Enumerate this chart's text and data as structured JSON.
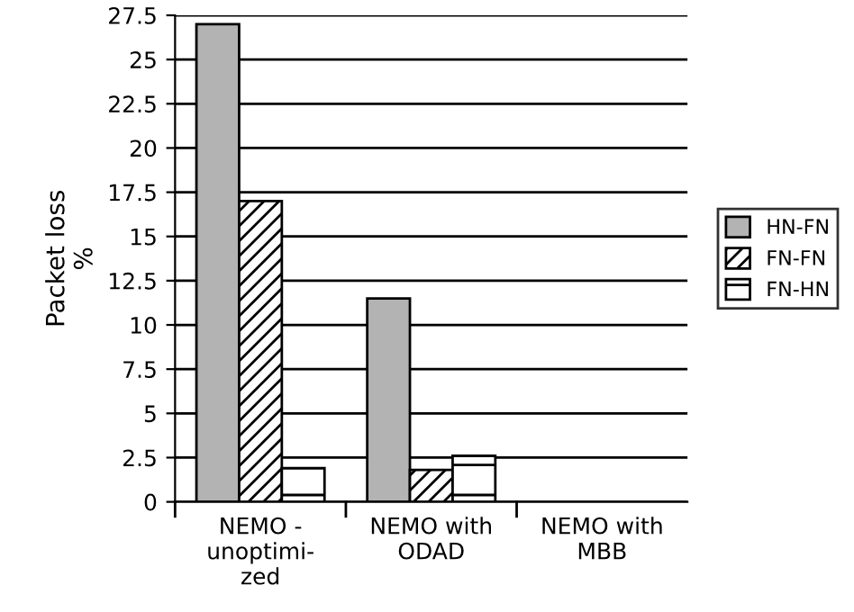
{
  "chart_data": {
    "type": "bar",
    "categories": [
      "NEMO -\nunoptimi-\nzed",
      "NEMO with\nODAD",
      "NEMO with\nMBB"
    ],
    "series": [
      {
        "name": "HN-FN",
        "color": "#b3b3b3",
        "values": [
          27,
          11.5,
          null
        ]
      },
      {
        "name": "FN-FN",
        "color": "#ffffff",
        "values": [
          17,
          1.8,
          null
        ]
      },
      {
        "name": "FN-HN",
        "color": "#ffffff",
        "values": [
          1.9,
          2.6,
          null
        ]
      }
    ],
    "ylabel": "Packet loss\n%",
    "ylim": [
      0,
      27.5
    ],
    "yticks": [
      0,
      2.5,
      5,
      7.5,
      10,
      12.5,
      15,
      17.5,
      20,
      22.5,
      25,
      27.5
    ],
    "grid": "y",
    "legend": "right"
  }
}
